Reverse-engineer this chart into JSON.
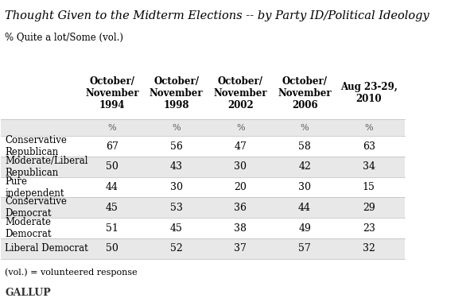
{
  "title": "Thought Given to the Midterm Elections -- by Party ID/Political Ideology",
  "subtitle": "% Quite a lot/Some (vol.)",
  "footnote": "(vol.) = volunteered response",
  "brand": "GALLUP",
  "col_headers": [
    "October/\nNovember\n1994",
    "October/\nNovember\n1998",
    "October/\nNovember\n2002",
    "October/\nNovember\n2006",
    "Aug 23-29,\n2010"
  ],
  "row_labels": [
    "Conservative\nRepublican",
    "Moderate/Liberal\nRepublican",
    "Pure\nindependent",
    "Conservative\nDemocrat",
    "Moderate\nDemocrat",
    "Liberal Democrat"
  ],
  "data": [
    [
      67,
      56,
      47,
      58,
      63
    ],
    [
      50,
      43,
      30,
      42,
      34
    ],
    [
      44,
      30,
      20,
      30,
      15
    ],
    [
      45,
      53,
      36,
      44,
      29
    ],
    [
      51,
      45,
      38,
      49,
      23
    ],
    [
      50,
      52,
      37,
      57,
      32
    ]
  ],
  "pct_row": [
    "%",
    "%",
    "%",
    "%",
    "%"
  ],
  "bg_color_even": "#e8e8e8",
  "bg_color_odd": "#ffffff",
  "header_bg": "#e8e8e8",
  "title_fontsize": 10.5,
  "subtitle_fontsize": 8.5,
  "header_fontsize": 8.5,
  "data_fontsize": 9,
  "label_fontsize": 8.5,
  "footnote_fontsize": 8,
  "brand_fontsize": 9
}
